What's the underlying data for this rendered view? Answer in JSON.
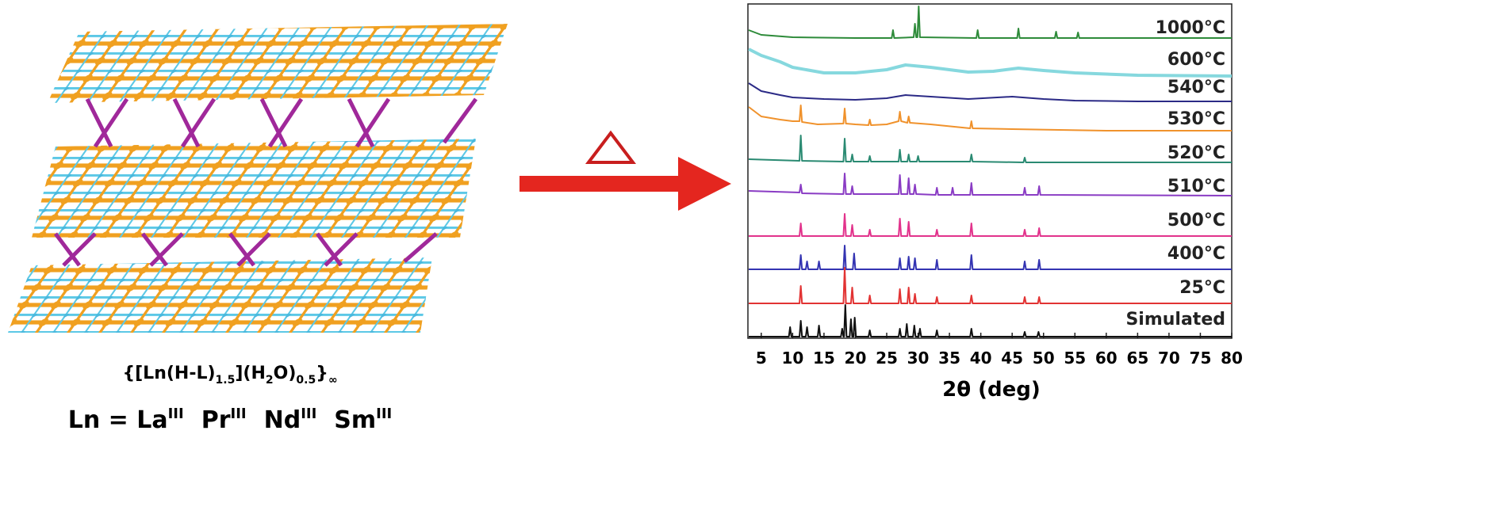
{
  "chart_data": {
    "type": "line",
    "xlabel": "2θ (deg)",
    "xlim": [
      3,
      80
    ],
    "xticks": [
      5,
      10,
      15,
      20,
      25,
      30,
      35,
      40,
      45,
      50,
      55,
      60,
      65,
      70,
      75,
      80
    ],
    "series": [
      {
        "name": "1000°C",
        "color": "#2e8b3a",
        "x": [
          3,
          5,
          10,
          20,
          25.8,
          26,
          26.2,
          29.3,
          29.5,
          29.7,
          29.9,
          30.1,
          30.3,
          39.3,
          39.5,
          39.7,
          45.8,
          46,
          46.2,
          51.8,
          52,
          52.2,
          55.3,
          55.5,
          55.7,
          62,
          80
        ],
        "values": [
          12,
          6,
          3,
          2,
          2,
          12,
          2,
          3,
          20,
          3,
          3,
          42,
          3,
          2,
          12,
          2,
          2,
          14,
          2,
          2,
          10,
          2,
          2,
          9,
          2,
          2,
          2
        ]
      },
      {
        "name": "600°C",
        "color": "#86d8de",
        "x": [
          3,
          5,
          8,
          10,
          15,
          20,
          25,
          28,
          32,
          38,
          42,
          46,
          50,
          55,
          65,
          80
        ],
        "values": [
          38,
          30,
          22,
          15,
          8,
          8,
          12,
          18,
          15,
          9,
          10,
          14,
          11,
          8,
          5,
          4
        ]
      },
      {
        "name": "540°C",
        "color": "#2b2a86",
        "x": [
          3,
          5,
          8,
          10,
          15,
          20,
          25,
          28,
          32,
          38,
          45,
          50,
          55,
          65,
          80
        ],
        "values": [
          25,
          15,
          10,
          7,
          5,
          4,
          6,
          10,
          8,
          5,
          8,
          5,
          3,
          2,
          2
        ]
      },
      {
        "name": "530°C",
        "color": "#f0922c",
        "x": [
          3,
          5,
          8,
          10,
          11.1,
          11.3,
          11.5,
          14,
          18.1,
          18.3,
          18.5,
          20,
          22.1,
          22.3,
          22.5,
          25,
          26.9,
          27.1,
          27.3,
          28.3,
          28.5,
          28.7,
          32,
          38.3,
          38.5,
          38.7,
          45,
          60,
          80
        ],
        "values": [
          30,
          18,
          14,
          12,
          12,
          32,
          11,
          8,
          9,
          28,
          9,
          8,
          7,
          14,
          7,
          8,
          12,
          24,
          12,
          10,
          18,
          10,
          8,
          3,
          12,
          3,
          2,
          0,
          0
        ]
      },
      {
        "name": "520°C",
        "color": "#2a8a72",
        "x": [
          3,
          11.1,
          11.3,
          11.5,
          18.1,
          18.3,
          18.5,
          19.3,
          19.5,
          19.7,
          22.1,
          22.3,
          22.5,
          26.9,
          27.1,
          27.3,
          28.3,
          28.5,
          28.7,
          29.8,
          30,
          30.2,
          38.3,
          38.5,
          38.7,
          46.8,
          47,
          47.2,
          80
        ],
        "values": [
          4,
          2,
          34,
          2,
          1,
          30,
          1,
          1,
          10,
          1,
          1,
          8,
          1,
          1,
          16,
          1,
          1,
          10,
          1,
          1,
          8,
          1,
          1,
          10,
          1,
          0,
          6,
          0,
          0
        ]
      },
      {
        "name": "510°C",
        "color": "#8a3cc4",
        "x": [
          3,
          11.1,
          11.3,
          11.5,
          18.1,
          18.3,
          18.5,
          19.3,
          19.5,
          19.7,
          26.9,
          27.1,
          27.3,
          28.3,
          28.5,
          28.7,
          29.3,
          29.5,
          29.7,
          32.8,
          33,
          33.2,
          35.3,
          35.5,
          35.7,
          38.3,
          38.5,
          38.7,
          46.8,
          47,
          47.2,
          49.1,
          49.3,
          49.5,
          80
        ],
        "values": [
          6,
          4,
          14,
          3,
          2,
          28,
          2,
          2,
          12,
          2,
          2,
          26,
          2,
          2,
          22,
          2,
          2,
          14,
          2,
          1,
          10,
          1,
          1,
          10,
          1,
          1,
          16,
          1,
          1,
          10,
          1,
          1,
          12,
          1,
          0
        ]
      },
      {
        "name": "500°C",
        "color": "#e2338c",
        "x": [
          3,
          11.1,
          11.3,
          11.5,
          18.1,
          18.3,
          18.5,
          19.3,
          19.5,
          19.7,
          22.1,
          22.3,
          22.5,
          26.9,
          27.1,
          27.3,
          28.3,
          28.5,
          28.7,
          32.8,
          33,
          33.2,
          38.3,
          38.5,
          38.7,
          46.8,
          47,
          47.2,
          49.1,
          49.3,
          49.5,
          80
        ],
        "values": [
          0,
          0,
          16,
          0,
          0,
          28,
          0,
          0,
          14,
          0,
          0,
          8,
          0,
          0,
          22,
          0,
          0,
          18,
          0,
          0,
          8,
          0,
          0,
          16,
          0,
          0,
          8,
          0,
          0,
          10,
          0,
          0
        ]
      },
      {
        "name": "400°C",
        "color": "#3434b2",
        "x": [
          3,
          11.1,
          11.3,
          11.5,
          12.1,
          12.3,
          12.5,
          14,
          14.2,
          14.4,
          18.1,
          18.3,
          18.5,
          19.6,
          19.8,
          20,
          26.9,
          27.1,
          27.3,
          28.3,
          28.5,
          28.7,
          29.3,
          29.5,
          29.7,
          32.8,
          33,
          33.2,
          38.3,
          38.5,
          38.7,
          46.8,
          47,
          47.2,
          49.1,
          49.3,
          49.5,
          80
        ],
        "values": [
          0,
          0,
          18,
          0,
          0,
          10,
          0,
          0,
          10,
          0,
          0,
          30,
          0,
          0,
          20,
          0,
          0,
          14,
          0,
          0,
          16,
          0,
          0,
          14,
          0,
          0,
          12,
          0,
          0,
          18,
          0,
          0,
          10,
          0,
          0,
          12,
          0,
          0
        ]
      },
      {
        "name": "25°C",
        "color": "#e23333",
        "x": [
          3,
          11.1,
          11.3,
          11.5,
          18.1,
          18.3,
          18.5,
          19.3,
          19.5,
          19.7,
          22.1,
          22.3,
          22.5,
          26.9,
          27.1,
          27.3,
          28.3,
          28.5,
          28.7,
          29.3,
          29.5,
          29.7,
          32.8,
          33,
          33.2,
          38.3,
          38.5,
          38.7,
          46.8,
          47,
          47.2,
          49.1,
          49.3,
          49.5,
          80
        ],
        "values": [
          0,
          0,
          22,
          0,
          0,
          45,
          0,
          0,
          20,
          0,
          0,
          10,
          0,
          0,
          18,
          0,
          0,
          20,
          0,
          0,
          12,
          0,
          0,
          8,
          0,
          0,
          10,
          0,
          0,
          8,
          0,
          0,
          8,
          0,
          0
        ]
      },
      {
        "name": "Simulated",
        "color": "#111111",
        "x": [
          3,
          9.4,
          9.6,
          9.8,
          11.1,
          11.3,
          11.5,
          12.1,
          12.3,
          12.5,
          14,
          14.2,
          14.4,
          17.7,
          17.9,
          18.1,
          18.2,
          18.4,
          18.6,
          19.1,
          19.3,
          19.5,
          19.7,
          19.9,
          20.1,
          22.1,
          22.3,
          22.5,
          26.9,
          27.1,
          27.3,
          28,
          28.2,
          28.4,
          29.2,
          29.4,
          29.6,
          30.1,
          30.3,
          30.5,
          32.8,
          33,
          33.2,
          38.3,
          38.5,
          38.7,
          46.8,
          47,
          47.2,
          49,
          49.2,
          49.4,
          80
        ],
        "values": [
          0,
          0,
          12,
          0,
          0,
          20,
          0,
          0,
          12,
          0,
          0,
          14,
          0,
          0,
          10,
          0,
          0,
          40,
          0,
          0,
          22,
          0,
          0,
          24,
          0,
          0,
          8,
          0,
          0,
          10,
          0,
          0,
          16,
          0,
          0,
          14,
          0,
          0,
          10,
          0,
          0,
          8,
          0,
          0,
          10,
          0,
          0,
          6,
          0,
          0,
          6,
          0,
          0
        ]
      }
    ]
  },
  "structure": {
    "formula": [
      "{[Ln(H-L)",
      "1.5",
      "](H",
      "2",
      "O)",
      "0.5",
      "}",
      "∞"
    ],
    "lanthanides": [
      "Ln = La",
      "III",
      "Pr",
      "III",
      "Nd",
      "III",
      "Sm",
      "III"
    ]
  }
}
